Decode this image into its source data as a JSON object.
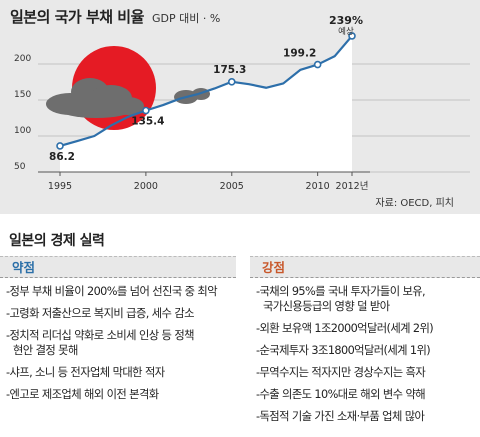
{
  "header": {
    "title": "일본의 국가 부채 비율",
    "subtitle": "GDP 대비 · %"
  },
  "chart_data": {
    "type": "line",
    "title": "일본의 국가 부채 비율",
    "subtitle": "GDP 대비 · %",
    "x_tick_labels": [
      "1995",
      "2000",
      "2005",
      "2010",
      "2012년"
    ],
    "y_tick_labels": [
      "50",
      "100",
      "150",
      "200"
    ],
    "ylim": [
      50,
      245
    ],
    "grid": true,
    "series": [
      {
        "x": [
          1995,
          1996,
          1997,
          1998,
          1999,
          2000,
          2001,
          2002,
          2003,
          2004,
          2005,
          2006,
          2007,
          2008,
          2009,
          2010,
          2011,
          2012
        ],
        "values": [
          86.2,
          93.0,
          100.0,
          115.0,
          127.0,
          135.4,
          143.0,
          152.0,
          158.0,
          166.0,
          175.3,
          172.0,
          167.0,
          173.0,
          192.0,
          199.2,
          211.0,
          239.0
        ]
      }
    ],
    "data_labels": [
      {
        "x": 1995,
        "y": 86.2,
        "text": "86.2"
      },
      {
        "x": 2000,
        "y": 135.4,
        "text": "135.4"
      },
      {
        "x": 2005,
        "y": 175.3,
        "text": "175.3"
      },
      {
        "x": 2010,
        "y": 199.2,
        "text": "199.2"
      },
      {
        "x": 2012,
        "y": 239.0,
        "text": "239%"
      }
    ],
    "annotation": "예상",
    "colors": {
      "line": "#2d6faa",
      "area": "#ffffff",
      "background": "#e9e9e9",
      "sun": "#e51b24",
      "cloud": "#6e6e6e"
    }
  },
  "source": "자료: OECD, 피치",
  "economy": {
    "title": "일본의 경제 실력",
    "weak": {
      "label": "약점",
      "items": [
        [
          "-정부 부채 비율이 200%를 넘어 선진국 중 최악"
        ],
        [
          "-고령화 저출산으로 복지비 급증, 세수 감소"
        ],
        [
          "-정치적 리더십 약화로 소비세 인상 등 정책",
          "현안 결정 못해"
        ],
        [
          "-샤프, 소니 등 전자업체 막대한 적자"
        ],
        [
          "-엔고로 제조업체 해외 이전 본격화"
        ]
      ]
    },
    "strong": {
      "label": "강점",
      "items": [
        [
          "-국채의 95%를 국내 투자가들이 보유,",
          "국가신용등급의 영향 덜 받아"
        ],
        [
          "-외환 보유액 1조2000억달러(세계 2위)"
        ],
        [
          "-순국제투자 3조1800억달러(세계 1위)"
        ],
        [
          "-무역수지는 적자지만 경상수지는 흑자"
        ],
        [
          "-수출 의존도 10%대로 해외 변수 약해"
        ],
        [
          "-독점적 기술 가진 소재·부품 업체 많아"
        ]
      ]
    }
  }
}
